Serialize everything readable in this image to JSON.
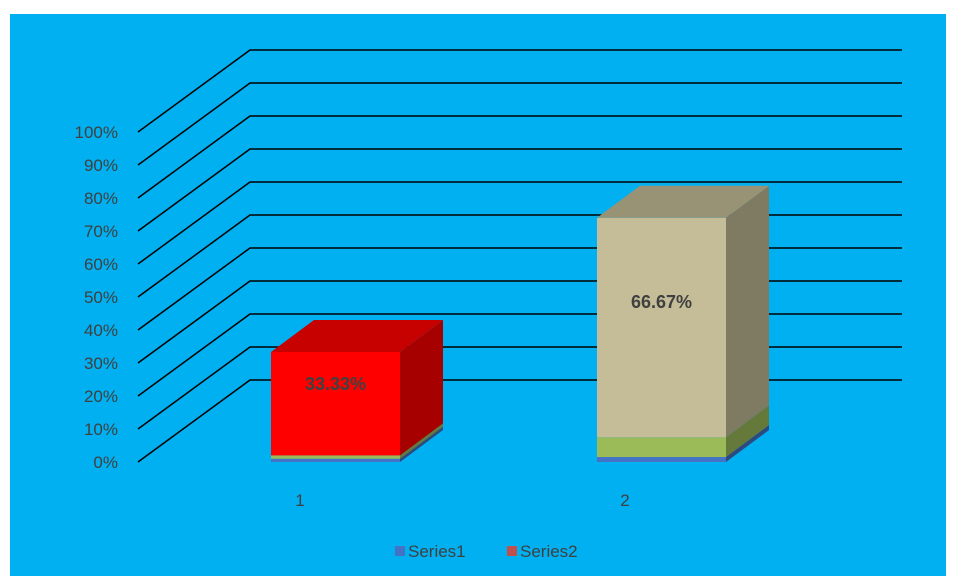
{
  "chart_data": {
    "type": "bar",
    "stacked": true,
    "percent_stacked": true,
    "style": "3d",
    "categories": [
      "1",
      "2"
    ],
    "y_ticks": [
      "0%",
      "10%",
      "20%",
      "30%",
      "40%",
      "50%",
      "60%",
      "70%",
      "80%",
      "90%",
      "100%"
    ],
    "ylim": [
      0,
      100
    ],
    "grid": true,
    "legend": {
      "placement": "bottom",
      "entries": [
        {
          "name": "Series1",
          "color": "#4472C4"
        },
        {
          "name": "Series2",
          "color": "#C0504D"
        }
      ]
    },
    "stack_segments": [
      {
        "category": "1",
        "bottom": 0,
        "top": 1,
        "color": "#4472C4"
      },
      {
        "category": "1",
        "bottom": 1,
        "top": 2,
        "color": "#9BBB59"
      },
      {
        "category": "1",
        "bottom": 2,
        "top": 33.33,
        "color": "#FF0000",
        "label": "33.33%"
      },
      {
        "category": "2",
        "bottom": 0,
        "top": 1.5,
        "color": "#4472C4"
      },
      {
        "category": "2",
        "bottom": 1.5,
        "top": 7.5,
        "color": "#9BBB59"
      },
      {
        "category": "2",
        "bottom": 7.5,
        "top": 74,
        "color": "#C4BD97",
        "label": "66.67%"
      }
    ]
  },
  "colors": {
    "background": "#00B0F0",
    "gridline": "#000000",
    "text": "#404040"
  }
}
